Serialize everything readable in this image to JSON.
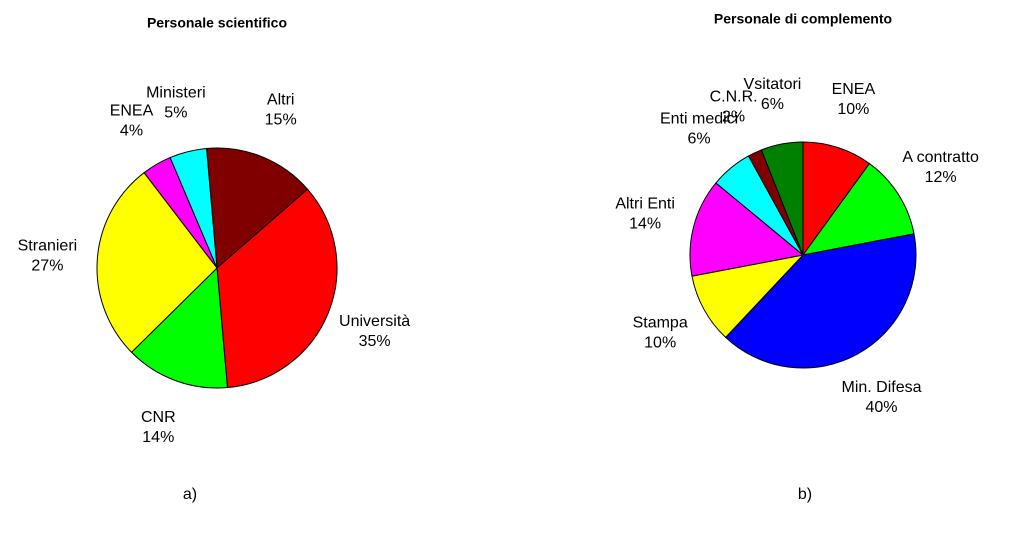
{
  "chart_data": [
    {
      "type": "pie",
      "title": "Personale scientifico",
      "caption": "a)",
      "categories": [
        "Altri",
        "Università",
        "CNR",
        "Stranieri",
        "ENEA",
        "Ministeri"
      ],
      "values": [
        15,
        35,
        14,
        27,
        4,
        5
      ],
      "value_labels": [
        "15%",
        "35%",
        "14%",
        "27%",
        "4%",
        "5%"
      ],
      "colors": [
        "#800000",
        "#ff0000",
        "#00ff00",
        "#ffff00",
        "#ff00ff",
        "#00ffff"
      ]
    },
    {
      "type": "pie",
      "title": "Personale di complemento",
      "caption": "b)",
      "categories": [
        "ENEA",
        "A contratto",
        "Min. Difesa",
        "Stampa",
        "Altri Enti",
        "Enti medici",
        "C.N.R.",
        "Vsitatori"
      ],
      "values": [
        10,
        12,
        40,
        10,
        14,
        6,
        2,
        6
      ],
      "value_labels": [
        "10%",
        "12%",
        "40%",
        "10%",
        "14%",
        "6%",
        "2%",
        "6%"
      ],
      "colors": [
        "#ff0000",
        "#00ff00",
        "#0000ff",
        "#ffff00",
        "#ff00ff",
        "#00ffff",
        "#800000",
        "#008000"
      ]
    }
  ]
}
